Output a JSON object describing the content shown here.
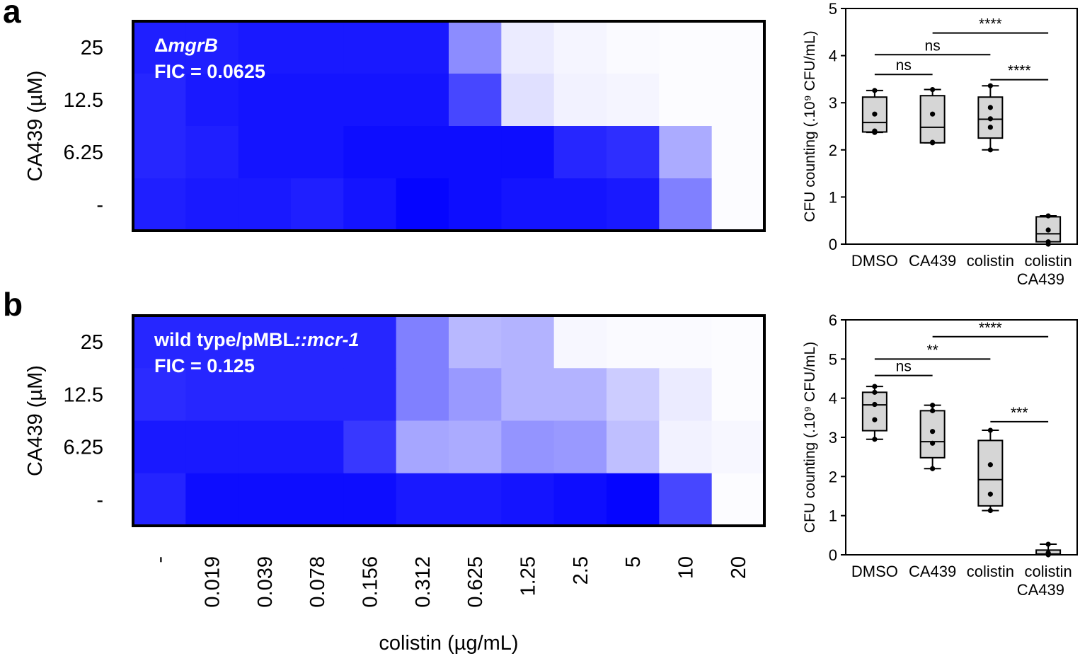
{
  "panels": [
    {
      "label": "a"
    },
    {
      "label": "b"
    }
  ],
  "chart_data": [
    {
      "type": "heatmap",
      "panel": "a",
      "title_strain_prefix": "Δ",
      "title_strain": "mgrB",
      "title_fic": "FIC = 0.0625",
      "ylabel": "CA439 (µM)",
      "xlabel": "colistin (µg/mL)",
      "rows": [
        "25",
        "12.5",
        "6.25",
        "-"
      ],
      "columns": [
        "-",
        "0.019",
        "0.039",
        "0.078",
        "0.156",
        "0.312",
        "0.625",
        "1.25",
        "2.5",
        "5",
        "10",
        "20"
      ],
      "values_relative_growth": [
        [
          0.88,
          0.88,
          0.9,
          0.9,
          0.9,
          0.9,
          0.45,
          0.08,
          0.04,
          0.02,
          0.01,
          0.01
        ],
        [
          0.85,
          0.9,
          0.92,
          0.92,
          0.92,
          0.92,
          0.72,
          0.12,
          0.05,
          0.04,
          0.01,
          0.01
        ],
        [
          0.85,
          0.88,
          0.92,
          0.92,
          0.95,
          0.95,
          0.95,
          0.95,
          0.85,
          0.82,
          0.33,
          0.01
        ],
        [
          0.88,
          0.9,
          0.9,
          0.88,
          0.92,
          0.98,
          0.95,
          0.92,
          0.92,
          0.9,
          0.5,
          0.01
        ]
      ]
    },
    {
      "type": "box",
      "panel": "a",
      "ylabel": "CFU counting (.10⁹ CFU/mL)",
      "ylim": [
        0,
        5
      ],
      "yticks": [
        "0",
        "1",
        "2",
        "3",
        "4",
        "5"
      ],
      "categories": [
        "DMSO",
        "CA439",
        "colistin",
        "colistin\nCA439"
      ],
      "category_lines": [
        [
          "DMSO"
        ],
        [
          "CA439"
        ],
        [
          "colistin"
        ],
        [
          "colistin",
          "CA439"
        ]
      ],
      "boxes": [
        {
          "min": 2.37,
          "q1": 2.38,
          "median": 2.58,
          "q3": 3.12,
          "max": 3.26,
          "points": [
            2.37,
            2.4,
            2.76,
            3.26
          ]
        },
        {
          "min": 2.15,
          "q1": 2.15,
          "median": 2.48,
          "q3": 3.15,
          "max": 3.28,
          "points": [
            2.15,
            2.16,
            2.76,
            3.28
          ]
        },
        {
          "min": 2.0,
          "q1": 2.25,
          "median": 2.65,
          "q3": 3.12,
          "max": 3.36,
          "points": [
            2.0,
            2.48,
            2.66,
            2.9,
            3.36
          ]
        },
        {
          "min": 0.0,
          "q1": 0.05,
          "median": 0.22,
          "q3": 0.58,
          "max": 0.6,
          "points": [
            0.0,
            0.05,
            0.3,
            0.6
          ]
        }
      ],
      "significance": [
        {
          "from": 0,
          "to": 1,
          "label": "ns",
          "y": 3.6
        },
        {
          "from": 0,
          "to": 2,
          "label": "ns",
          "y": 4.02
        },
        {
          "from": 1,
          "to": 3,
          "label": "****",
          "y": 4.48
        },
        {
          "from": 2,
          "to": 3,
          "label": "****",
          "y": 3.49
        }
      ]
    },
    {
      "type": "heatmap",
      "panel": "b",
      "title_strain_prefix": "wild type/pMBL",
      "title_strain": "::mcr-1",
      "title_fic": "FIC = 0.125",
      "ylabel": "CA439 (µM)",
      "xlabel": "colistin (µg/mL)",
      "rows": [
        "25",
        "12.5",
        "6.25",
        "-"
      ],
      "columns": [
        "-",
        "0.019",
        "0.039",
        "0.078",
        "0.156",
        "0.312",
        "0.625",
        "1.25",
        "2.5",
        "5",
        "10",
        "20"
      ],
      "values_relative_growth": [
        [
          0.85,
          0.85,
          0.85,
          0.85,
          0.85,
          0.5,
          0.28,
          0.3,
          0.03,
          0.02,
          0.02,
          0.01
        ],
        [
          0.83,
          0.85,
          0.85,
          0.85,
          0.85,
          0.5,
          0.4,
          0.3,
          0.3,
          0.2,
          0.08,
          0.01
        ],
        [
          0.9,
          0.9,
          0.9,
          0.9,
          0.78,
          0.35,
          0.33,
          0.42,
          0.4,
          0.25,
          0.05,
          0.03
        ],
        [
          0.86,
          0.95,
          0.95,
          0.95,
          0.95,
          0.9,
          0.9,
          0.92,
          0.95,
          0.98,
          0.72,
          0.01
        ]
      ]
    },
    {
      "type": "box",
      "panel": "b",
      "ylabel": "CFU counting (.10⁹ CFU/mL)",
      "ylim": [
        0,
        6
      ],
      "yticks": [
        "0",
        "1",
        "2",
        "3",
        "4",
        "5",
        "6"
      ],
      "categories": [
        "DMSO",
        "CA439",
        "colistin",
        "colistin\nCA439"
      ],
      "category_lines": [
        [
          "DMSO"
        ],
        [
          "CA439"
        ],
        [
          "colistin"
        ],
        [
          "colistin",
          "CA439"
        ]
      ],
      "boxes": [
        {
          "min": 2.95,
          "q1": 3.17,
          "median": 3.83,
          "q3": 4.15,
          "max": 4.3,
          "points": [
            2.95,
            3.45,
            3.84,
            4.15,
            4.3
          ]
        },
        {
          "min": 2.2,
          "q1": 2.48,
          "median": 2.89,
          "q3": 3.68,
          "max": 3.82,
          "points": [
            2.2,
            2.85,
            3.15,
            3.68,
            3.82
          ]
        },
        {
          "min": 1.13,
          "q1": 1.25,
          "median": 1.92,
          "q3": 2.92,
          "max": 3.18,
          "points": [
            1.13,
            1.55,
            2.3,
            3.18
          ]
        },
        {
          "min": 0.0,
          "q1": 0.0,
          "median": 0.02,
          "q3": 0.12,
          "max": 0.27,
          "points": [
            0.0,
            0.02,
            0.05,
            0.27
          ]
        }
      ],
      "significance": [
        {
          "from": 0,
          "to": 1,
          "label": "ns",
          "y": 4.58
        },
        {
          "from": 0,
          "to": 2,
          "label": "**",
          "y": 5.0
        },
        {
          "from": 1,
          "to": 3,
          "label": "****",
          "y": 5.57
        },
        {
          "from": 2,
          "to": 3,
          "label": "***",
          "y": 3.4
        }
      ]
    }
  ]
}
